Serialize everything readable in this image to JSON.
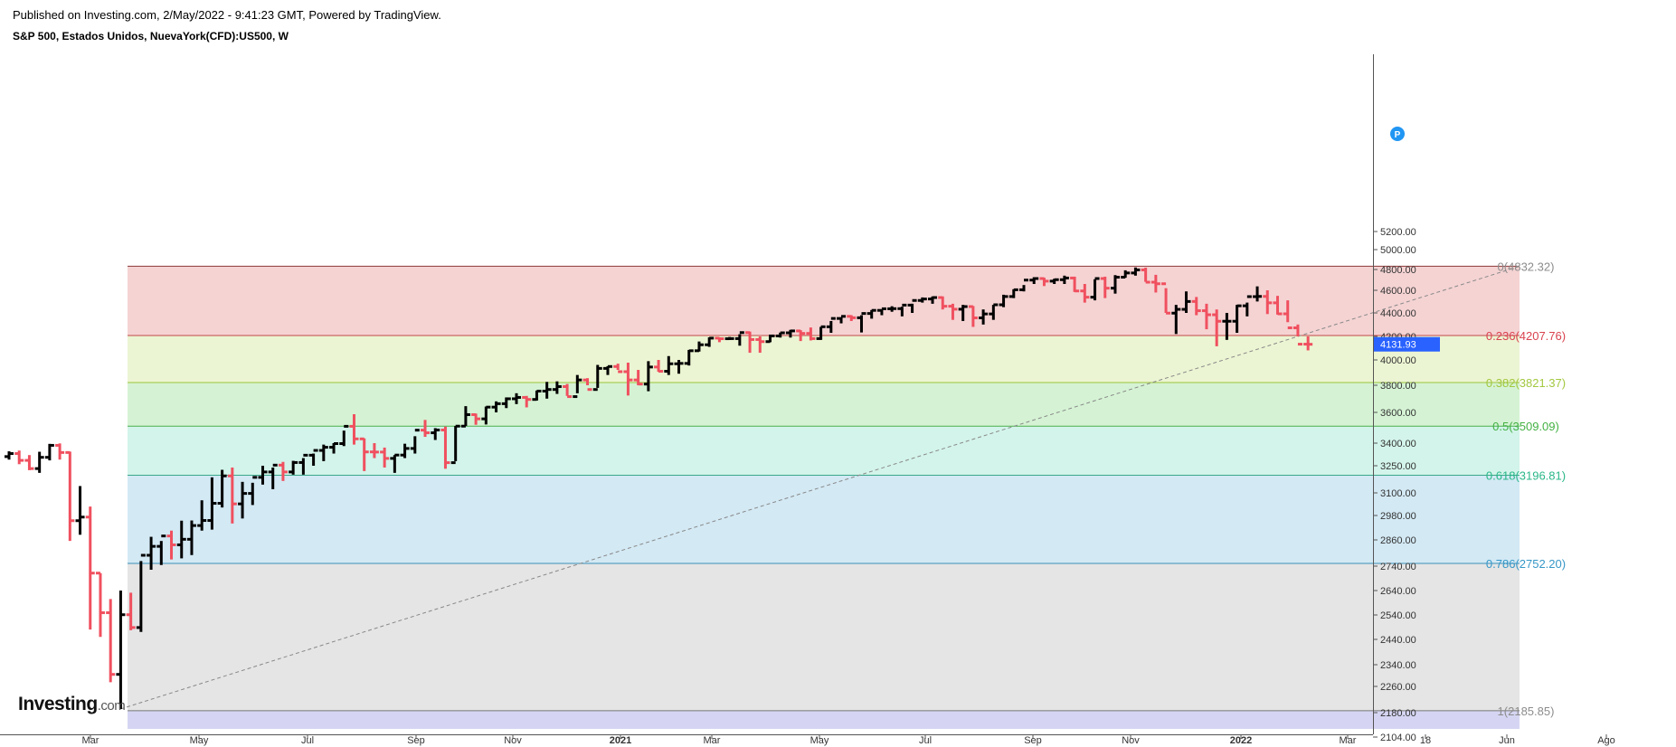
{
  "header": {
    "published": "Published on Investing.com, 2/May/2022 - 9:41:23 GMT, Powered by TradingView.",
    "title": "S&P 500, Estados Unidos, NuevaYork(CFD):US500, W"
  },
  "logo": {
    "main": "Investing",
    "suffix": ".com"
  },
  "chart_data": {
    "type": "bar",
    "title": "S&P 500, Estados Unidos, NuevaYork(CFD):US500, W",
    "timeframe": "W",
    "y_ticks": [
      "5200.00",
      "5000.00",
      "4800.00",
      "4600.00",
      "4400.00",
      "4200.00",
      "4000.00",
      "3800.00",
      "3600.00",
      "3400.00",
      "3250.00",
      "3100.00",
      "2980.00",
      "2860.00",
      "2740.00",
      "2640.00",
      "2540.00",
      "2440.00",
      "2340.00",
      "2260.00",
      "2180.00",
      "2104.00"
    ],
    "x_labels": [
      "Mar",
      "May",
      "Jul",
      "Sep",
      "Nov",
      "2021",
      "Mar",
      "May",
      "Jul",
      "Sep",
      "Nov",
      "2022",
      "Mar",
      "18",
      "Jun",
      "Ago"
    ],
    "bold_x_labels": [
      "2021",
      "2022"
    ],
    "last_price": "4131.93",
    "last_price_color": "#2962ff",
    "marker_label": "P",
    "fib_levels": [
      {
        "label": "0(4832.32)",
        "price": 4832.32,
        "line_color": "#8d3a3a",
        "text_color": "#8c8c8c",
        "fill_color": "#f5d3d3"
      },
      {
        "label": "0.236(4207.76)",
        "price": 4207.76,
        "line_color": "#c44848",
        "text_color": "#d9424f",
        "fill_color": "#ecf5d3"
      },
      {
        "label": "0.382(3821.37)",
        "price": 3821.37,
        "line_color": "#9bc43a",
        "text_color": "#a3c83f",
        "fill_color": "#d5f3d4"
      },
      {
        "label": "0.5(3509.09)",
        "price": 3509.09,
        "line_color": "#4cae4c",
        "text_color": "#43b143",
        "fill_color": "#d3f4ea"
      },
      {
        "label": "0.618(3196.81)",
        "price": 3196.81,
        "line_color": "#3aa88a",
        "text_color": "#2ab789",
        "fill_color": "#d3e9f4"
      },
      {
        "label": "0.786(2752.20)",
        "price": 2752.2,
        "line_color": "#3b8fb8",
        "text_color": "#3697c7",
        "fill_color": "#e5e5e5"
      },
      {
        "label": "1(2185.85)",
        "price": 2185.85,
        "line_color": "#777777",
        "text_color": "#8c8c8c",
        "fill_color": "#d5d5f3"
      }
    ],
    "colors": {
      "up": "#000000",
      "down": "#f0505f",
      "trend": "#888888"
    },
    "bars": [
      [
        3310,
        3345,
        3290,
        3330
      ],
      [
        3330,
        3350,
        3260,
        3285
      ],
      [
        3285,
        3320,
        3225,
        3234
      ],
      [
        3234,
        3342,
        3210,
        3305
      ],
      [
        3305,
        3395,
        3285,
        3385
      ],
      [
        3385,
        3398,
        3290,
        3337
      ],
      [
        3337,
        3343,
        2855,
        2954
      ],
      [
        2954,
        3137,
        2885,
        2972
      ],
      [
        2972,
        3027,
        2480,
        2711
      ],
      [
        2711,
        2711,
        2450,
        2549
      ],
      [
        2549,
        2605,
        2275,
        2304
      ],
      [
        2304,
        2640,
        2191,
        2541
      ],
      [
        2541,
        2631,
        2477,
        2488
      ],
      [
        2488,
        2763,
        2470,
        2789
      ],
      [
        2789,
        2875,
        2725,
        2830
      ],
      [
        2830,
        2855,
        2745,
        2879
      ],
      [
        2879,
        2905,
        2770,
        2837
      ],
      [
        2837,
        2954,
        2775,
        2863
      ],
      [
        2863,
        2955,
        2790,
        2930
      ],
      [
        2930,
        3060,
        2905,
        2955
      ],
      [
        2955,
        3185,
        2910,
        3044
      ],
      [
        3044,
        3227,
        3022,
        3193
      ],
      [
        3193,
        3240,
        2940,
        3041
      ],
      [
        3041,
        3160,
        2965,
        3097
      ],
      [
        3097,
        3155,
        3035,
        3185
      ],
      [
        3185,
        3250,
        3145,
        3215
      ],
      [
        3215,
        3240,
        3120,
        3254
      ],
      [
        3254,
        3275,
        3165,
        3215
      ],
      [
        3215,
        3282,
        3200,
        3271
      ],
      [
        3271,
        3300,
        3200,
        3319
      ],
      [
        3319,
        3330,
        3250,
        3351
      ],
      [
        3351,
        3390,
        3280,
        3372
      ],
      [
        3372,
        3400,
        3330,
        3397
      ],
      [
        3397,
        3480,
        3380,
        3508
      ],
      [
        3508,
        3588,
        3390,
        3427
      ],
      [
        3427,
        3430,
        3220,
        3341
      ],
      [
        3341,
        3400,
        3300,
        3340
      ],
      [
        3340,
        3370,
        3240,
        3298
      ],
      [
        3298,
        3320,
        3210,
        3320
      ],
      [
        3320,
        3396,
        3300,
        3364
      ],
      [
        3364,
        3444,
        3330,
        3483
      ],
      [
        3483,
        3550,
        3440,
        3466
      ],
      [
        3466,
        3496,
        3420,
        3484
      ],
      [
        3484,
        3506,
        3233,
        3270
      ],
      [
        3270,
        3510,
        3280,
        3509
      ],
      [
        3509,
        3645,
        3510,
        3585
      ],
      [
        3585,
        3592,
        3518,
        3557
      ],
      [
        3557,
        3642,
        3520,
        3638
      ],
      [
        3638,
        3680,
        3600,
        3663
      ],
      [
        3663,
        3709,
        3631,
        3699
      ],
      [
        3699,
        3740,
        3660,
        3709
      ],
      [
        3709,
        3720,
        3636,
        3694
      ],
      [
        3694,
        3760,
        3686,
        3756
      ],
      [
        3756,
        3826,
        3700,
        3768
      ],
      [
        3768,
        3830,
        3735,
        3790
      ],
      [
        3790,
        3810,
        3720,
        3715
      ],
      [
        3715,
        3880,
        3740,
        3841
      ],
      [
        3841,
        3855,
        3800,
        3768
      ],
      [
        3768,
        3960,
        3780,
        3932
      ],
      [
        3932,
        3950,
        3880,
        3947
      ],
      [
        3947,
        3970,
        3920,
        3906
      ],
      [
        3906,
        3978,
        3723,
        3841
      ],
      [
        3841,
        3920,
        3800,
        3809
      ],
      [
        3809,
        3990,
        3755,
        3943
      ],
      [
        3943,
        4000,
        3905,
        3909
      ],
      [
        3909,
        4032,
        3880,
        3969
      ],
      [
        3969,
        4000,
        3890,
        3972
      ],
      [
        3972,
        4084,
        3955,
        4077
      ],
      [
        4077,
        4156,
        4070,
        4128
      ],
      [
        4128,
        4192,
        4110,
        4185
      ],
      [
        4185,
        4192,
        4150,
        4180
      ],
      [
        4180,
        4195,
        4170,
        4181
      ],
      [
        4181,
        4218,
        4120,
        4232
      ],
      [
        4232,
        4240,
        4060,
        4173
      ],
      [
        4173,
        4200,
        4060,
        4155
      ],
      [
        4155,
        4215,
        4150,
        4204
      ],
      [
        4204,
        4232,
        4190,
        4230
      ],
      [
        4230,
        4255,
        4190,
        4246
      ],
      [
        4246,
        4252,
        4160,
        4225
      ],
      [
        4225,
        4275,
        4165,
        4181
      ],
      [
        4181,
        4280,
        4170,
        4281
      ],
      [
        4281,
        4330,
        4230,
        4352
      ],
      [
        4352,
        4362,
        4310,
        4370
      ],
      [
        4370,
        4380,
        4330,
        4358
      ],
      [
        4358,
        4380,
        4233,
        4395
      ],
      [
        4395,
        4425,
        4350,
        4422
      ],
      [
        4422,
        4429,
        4380,
        4436
      ],
      [
        4436,
        4458,
        4410,
        4437
      ],
      [
        4437,
        4454,
        4370,
        4468
      ],
      [
        4468,
        4480,
        4400,
        4509
      ],
      [
        4509,
        4536,
        4490,
        4522
      ],
      [
        4522,
        4545,
        4480,
        4535
      ],
      [
        4535,
        4545,
        4430,
        4458
      ],
      [
        4458,
        4480,
        4340,
        4432
      ],
      [
        4432,
        4470,
        4330,
        4455
      ],
      [
        4455,
        4460,
        4280,
        4357
      ],
      [
        4357,
        4430,
        4300,
        4391
      ],
      [
        4391,
        4470,
        4340,
        4471
      ],
      [
        4471,
        4560,
        4450,
        4544
      ],
      [
        4544,
        4610,
        4530,
        4605
      ],
      [
        4605,
        4650,
        4590,
        4697
      ],
      [
        4697,
        4725,
        4660,
        4712
      ],
      [
        4712,
        4720,
        4640,
        4687
      ],
      [
        4687,
        4710,
        4660,
        4701
      ],
      [
        4701,
        4740,
        4660,
        4717
      ],
      [
        4717,
        4730,
        4585,
        4594
      ],
      [
        4594,
        4660,
        4490,
        4538
      ],
      [
        4538,
        4705,
        4510,
        4712
      ],
      [
        4712,
        4730,
        4530,
        4620
      ],
      [
        4620,
        4745,
        4570,
        4725
      ],
      [
        4725,
        4792,
        4720,
        4766
      ],
      [
        4766,
        4820,
        4740,
        4796
      ],
      [
        4796,
        4818,
        4680,
        4677
      ],
      [
        4677,
        4748,
        4580,
        4662
      ],
      [
        4662,
        4620,
        4400,
        4398
      ],
      [
        4398,
        4470,
        4220,
        4431
      ],
      [
        4431,
        4590,
        4400,
        4500
      ],
      [
        4500,
        4540,
        4380,
        4419
      ],
      [
        4419,
        4480,
        4260,
        4384
      ],
      [
        4384,
        4430,
        4115,
        4328
      ],
      [
        4328,
        4400,
        4170,
        4328
      ],
      [
        4328,
        4470,
        4230,
        4462
      ],
      [
        4462,
        4490,
        4370,
        4543
      ],
      [
        4543,
        4637,
        4500,
        4545
      ],
      [
        4545,
        4600,
        4390,
        4488
      ],
      [
        4488,
        4550,
        4385,
        4392
      ],
      [
        4392,
        4510,
        4320,
        4272
      ],
      [
        4272,
        4300,
        4200,
        4133
      ],
      [
        4133,
        4200,
        4080,
        4132
      ]
    ]
  }
}
